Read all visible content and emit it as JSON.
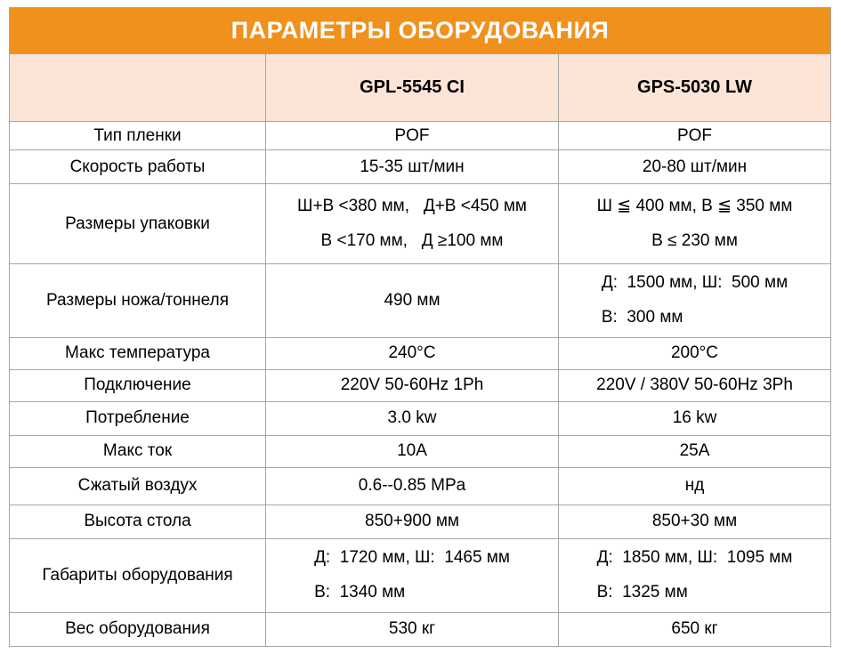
{
  "title": "ПАРАМЕТРЫ ОБОРУДОВАНИЯ",
  "columns": {
    "model1": "GPL-5545 CI",
    "model2": "GPS-5030 LW"
  },
  "rows": [
    {
      "label": "Тип пленки",
      "gpl": "POF",
      "gps": "POF"
    },
    {
      "label": "Скорость работы",
      "gpl": "15-35 шт/мин",
      "gps": "20-80 шт/мин"
    },
    {
      "label": "Размеры упаковки",
      "gpl": "Ш+В <380 мм,   Д+В <450 мм\nВ <170 мм,   Д ≥100 мм",
      "gps": "Ш ≦ 400 мм, В ≦ 350 мм\nВ ≤ 230 мм"
    },
    {
      "label": "Размеры ножа/тоннеля",
      "gpl": "490 мм",
      "gps": "Д:  1500 мм, Ш:  500 мм\nВ:  300 мм"
    },
    {
      "label": "Макс температура",
      "gpl": "240°C",
      "gps": "200°C"
    },
    {
      "label": "Подключение",
      "gpl": "220V 50-60Hz 1Ph",
      "gps": "220V / 380V 50-60Hz 3Ph"
    },
    {
      "label": "Потребление",
      "gpl": "3.0 kw",
      "gps": "16 kw"
    },
    {
      "label": "Макс ток",
      "gpl": "10A",
      "gps": "25A"
    },
    {
      "label": "Сжатый воздух",
      "gpl": "0.6--0.85 MPa",
      "gps": "нд"
    },
    {
      "label": "Высота стола",
      "gpl": "850+900 мм",
      "gps": "850+30 мм"
    },
    {
      "label": "Габариты оборудования",
      "gpl": "Д:  1720 мм, Ш:  1465 мм\nВ:  1340 мм",
      "gps": "Д:  1850 мм, Ш:  1095 мм\nВ:  1325 мм"
    },
    {
      "label": "Вес оборудования",
      "gpl": "530 кг",
      "gps": "650 кг"
    }
  ],
  "colors": {
    "header_orange": "#F0911D",
    "subheader_peach": "#FCE4D6",
    "border_gray": "#A6A6A6"
  }
}
